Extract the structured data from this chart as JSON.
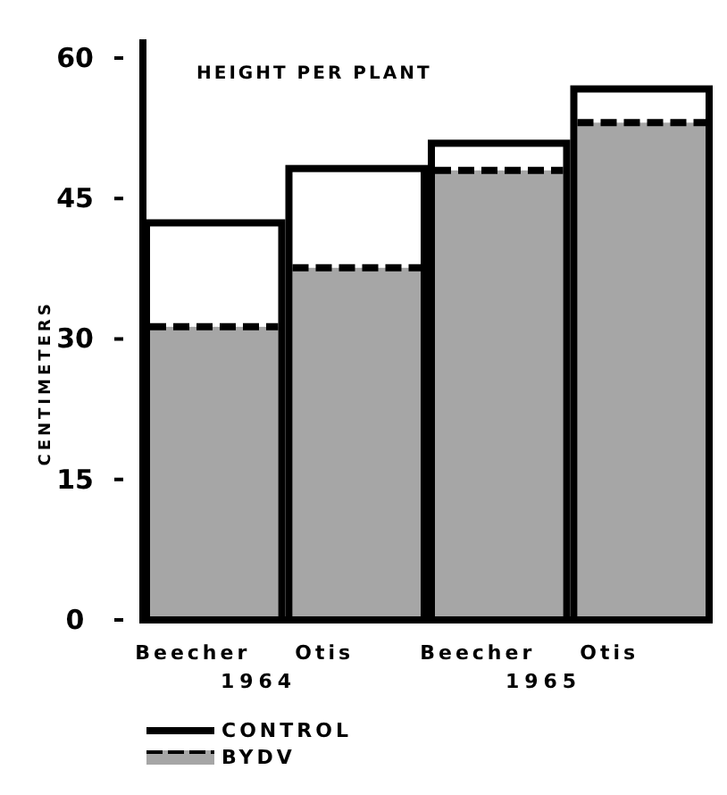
{
  "chart_data": {
    "type": "bar",
    "title": "HEIGHT PER PLANT",
    "ylabel": "CENTIMETERS",
    "categories": [
      "Beecher",
      "Otis",
      "Beecher",
      "Otis"
    ],
    "annotations": [
      {
        "text": "1964"
      },
      {
        "text": "1965"
      }
    ],
    "series": [
      {
        "name": "CONTROL",
        "color": "#000000",
        "values": [
          42.4,
          48.2,
          50.9,
          56.7
        ]
      },
      {
        "name": "BYDV",
        "color": "#a6a6a6",
        "values": [
          31.3,
          37.6,
          48,
          53.1
        ]
      }
    ],
    "ylim": [
      0,
      62
    ],
    "yticks": [
      0,
      15,
      30,
      45,
      60
    ],
    "legend": "bottom left",
    "grid": false
  }
}
